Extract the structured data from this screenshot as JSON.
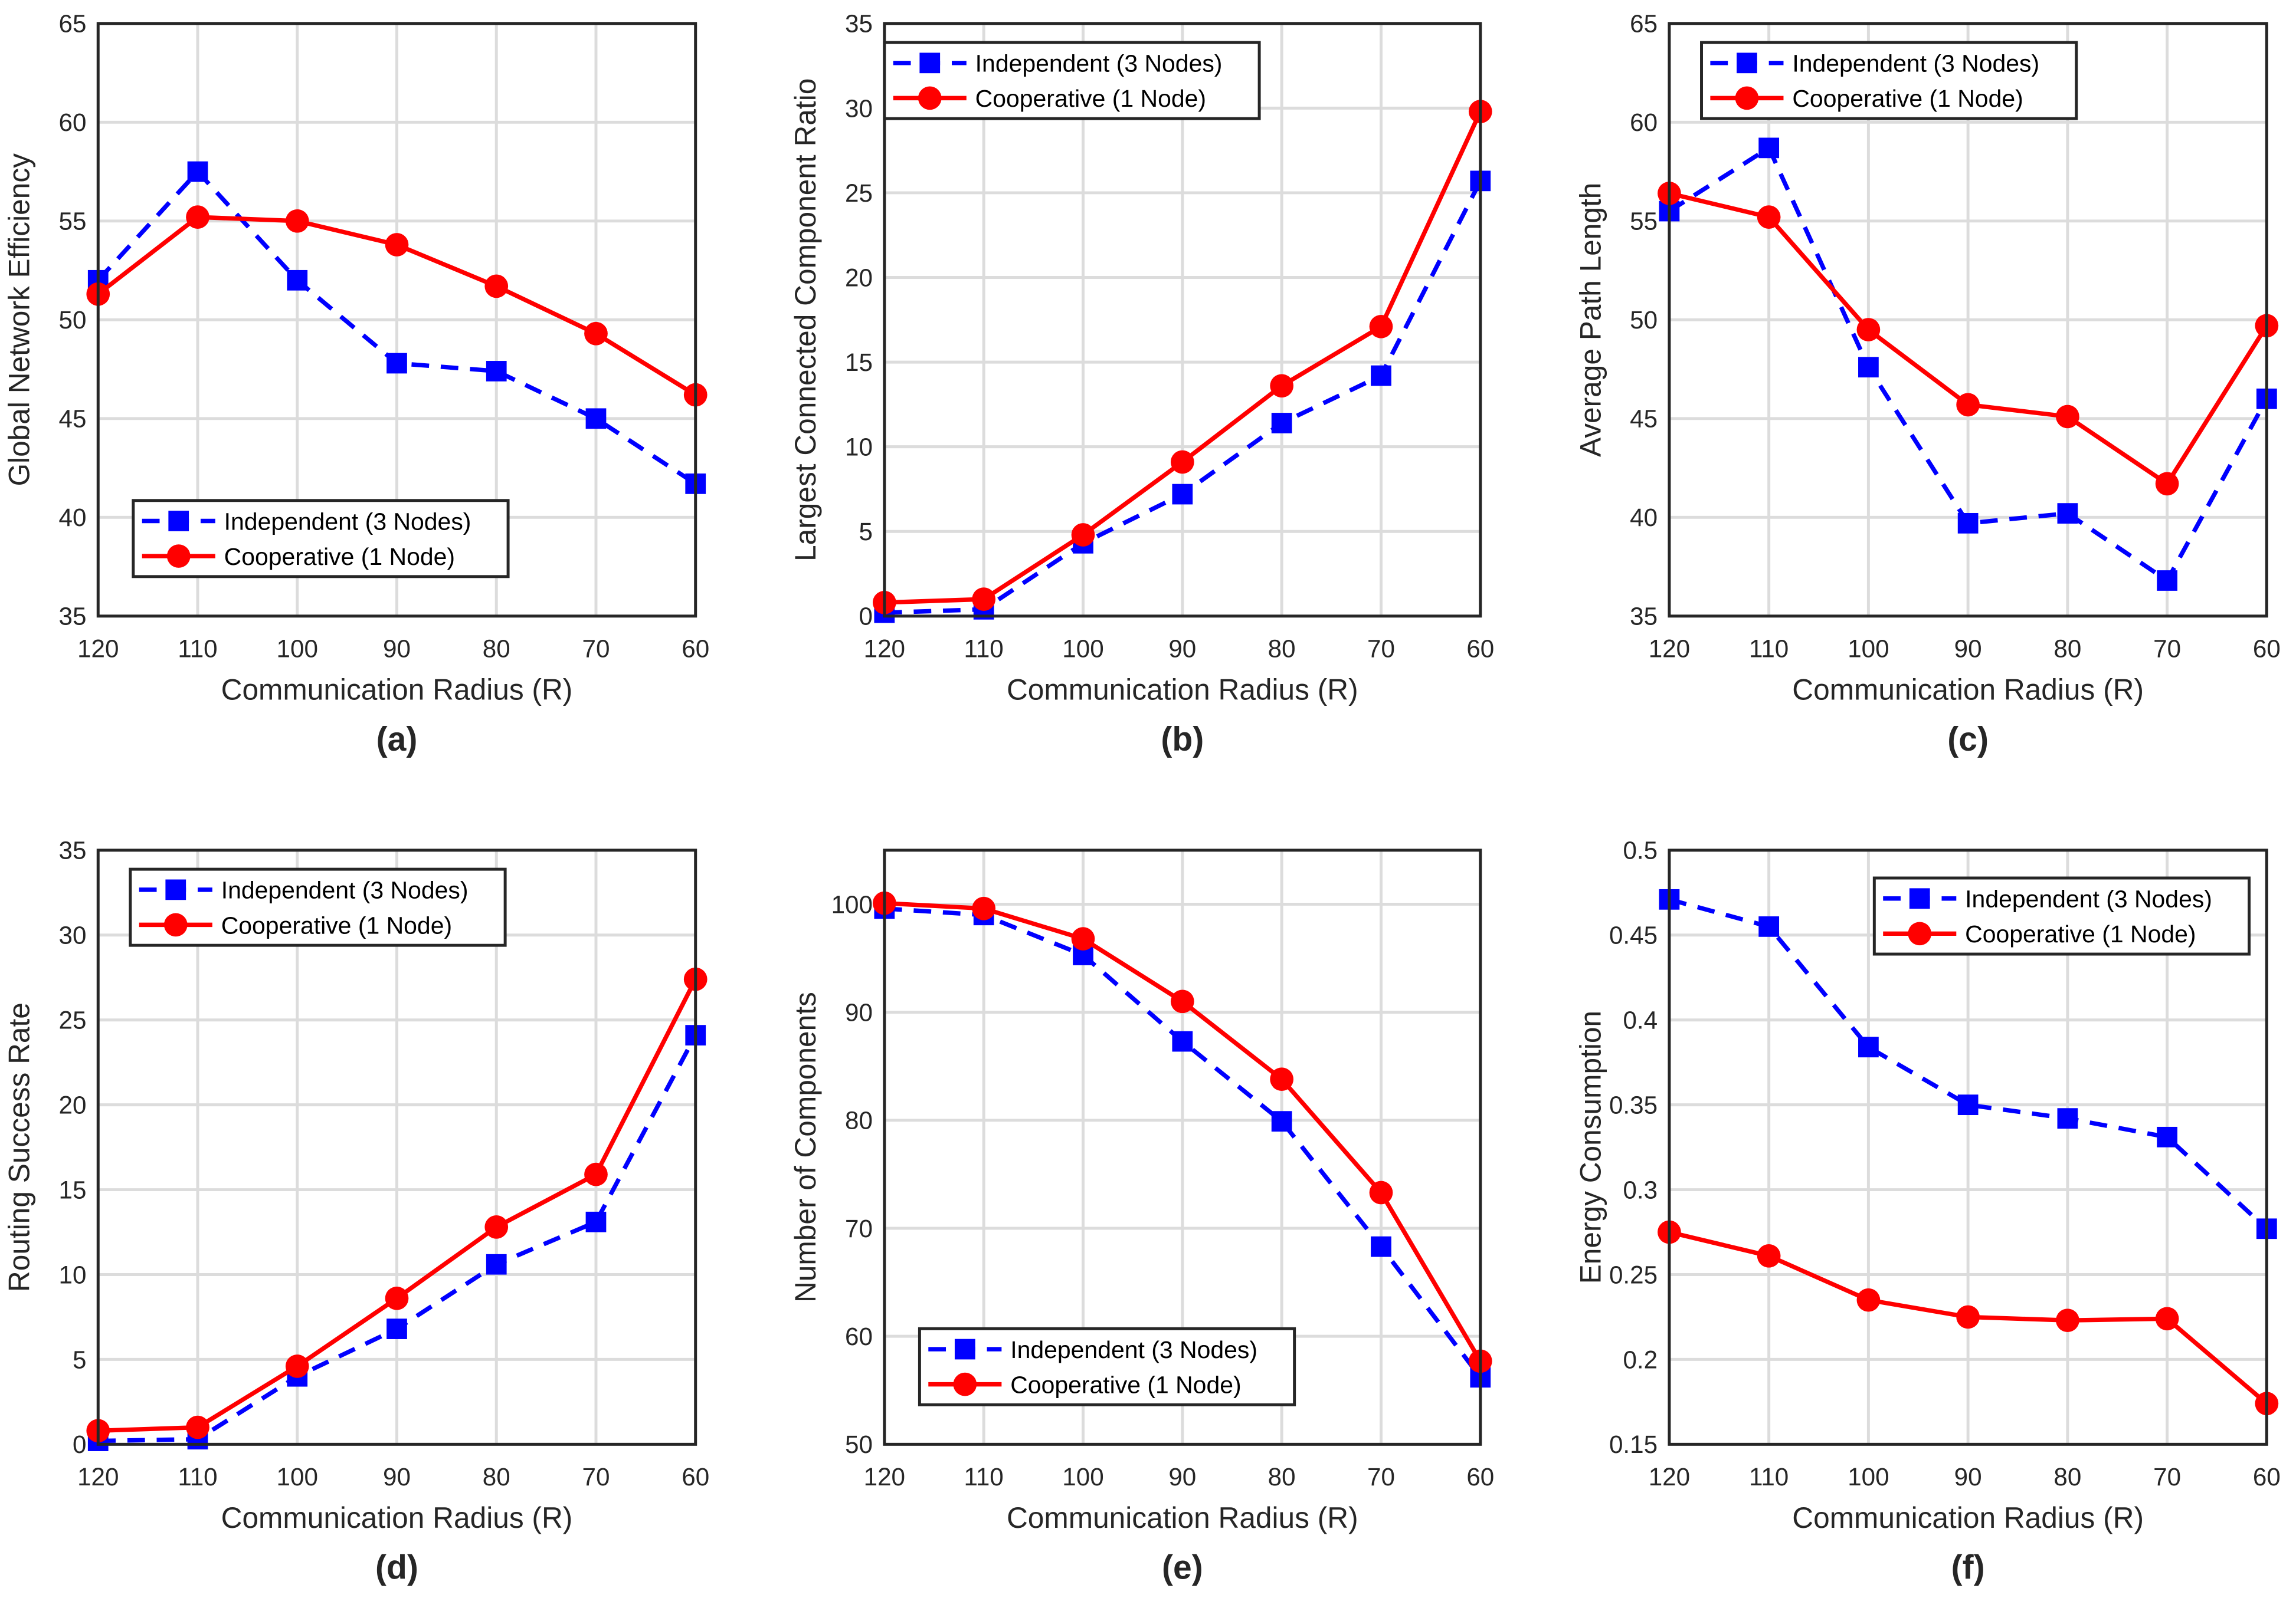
{
  "colors": {
    "independent": "#0000ff",
    "cooperative": "#ff0000",
    "grid": "#dcdcdc",
    "axis": "#262626"
  },
  "chart_data": [
    {
      "type": "line",
      "panel_label": "(a)",
      "xlabel": "Communication Radius (R)",
      "ylabel": "Global Network Efficiency",
      "x": [
        120,
        110,
        100,
        90,
        80,
        70,
        60
      ],
      "xlim": [
        120,
        60
      ],
      "ylim": [
        35,
        65
      ],
      "yticks": [
        35,
        40,
        45,
        50,
        55,
        60,
        65
      ],
      "grid": true,
      "legend_loc": "bottom-left",
      "series": [
        {
          "name": "Independent (3 Nodes)",
          "style": "dashed-square",
          "values": [
            52.0,
            57.5,
            52.0,
            47.8,
            47.4,
            45.0,
            41.7
          ]
        },
        {
          "name": "Cooperative (1 Node)",
          "style": "solid-circle",
          "values": [
            51.3,
            55.2,
            55.0,
            53.8,
            51.7,
            49.3,
            46.2
          ]
        }
      ]
    },
    {
      "type": "line",
      "panel_label": "(b)",
      "xlabel": "Communication Radius (R)",
      "ylabel": "Largest Connected Component Ratio",
      "x": [
        120,
        110,
        100,
        90,
        80,
        70,
        60
      ],
      "xlim": [
        120,
        60
      ],
      "ylim": [
        0,
        35
      ],
      "yticks": [
        0,
        5,
        10,
        15,
        20,
        25,
        30,
        35
      ],
      "grid": true,
      "legend_loc": "top-left",
      "series": [
        {
          "name": "Independent (3 Nodes)",
          "style": "dashed-square",
          "values": [
            0.2,
            0.4,
            4.3,
            7.2,
            11.4,
            14.2,
            25.7
          ]
        },
        {
          "name": "Cooperative (1 Node)",
          "style": "solid-circle",
          "values": [
            0.8,
            1.0,
            4.8,
            9.1,
            13.6,
            17.1,
            29.8
          ]
        }
      ]
    },
    {
      "type": "line",
      "panel_label": "(c)",
      "xlabel": "Communication Radius (R)",
      "ylabel": "Average Path Length",
      "x": [
        120,
        110,
        100,
        90,
        80,
        70,
        60
      ],
      "xlim": [
        120,
        60
      ],
      "ylim": [
        35,
        65
      ],
      "yticks": [
        35,
        40,
        45,
        50,
        55,
        60,
        65
      ],
      "grid": true,
      "legend_loc": "top-left",
      "series": [
        {
          "name": "Independent (3 Nodes)",
          "style": "dashed-square",
          "values": [
            55.5,
            58.7,
            47.6,
            39.7,
            40.2,
            36.8,
            46.0
          ]
        },
        {
          "name": "Cooperative (1 Node)",
          "style": "solid-circle",
          "values": [
            56.4,
            55.2,
            49.5,
            45.7,
            45.1,
            41.7,
            49.7
          ]
        }
      ]
    },
    {
      "type": "line",
      "panel_label": "(d)",
      "xlabel": "Communication Radius (R)",
      "ylabel": "Routing Success Rate",
      "x": [
        120,
        110,
        100,
        90,
        80,
        70,
        60
      ],
      "xlim": [
        120,
        60
      ],
      "ylim": [
        0,
        35
      ],
      "yticks": [
        0,
        5,
        10,
        15,
        20,
        25,
        30,
        35
      ],
      "grid": true,
      "legend_loc": "top-left",
      "series": [
        {
          "name": "Independent (3 Nodes)",
          "style": "dashed-square",
          "values": [
            0.2,
            0.3,
            4.0,
            6.8,
            10.6,
            13.1,
            24.1
          ]
        },
        {
          "name": "Cooperative (1 Node)",
          "style": "solid-circle",
          "values": [
            0.8,
            1.0,
            4.6,
            8.6,
            12.8,
            15.9,
            27.4
          ]
        }
      ]
    },
    {
      "type": "line",
      "panel_label": "(e)",
      "xlabel": "Communication Radius (R)",
      "ylabel": "Number of Components",
      "x": [
        120,
        110,
        100,
        90,
        80,
        70,
        60
      ],
      "xlim": [
        120,
        60
      ],
      "ylim": [
        50,
        105
      ],
      "yticks": [
        50,
        60,
        70,
        80,
        90,
        100
      ],
      "grid": true,
      "legend_loc": "bottom-left",
      "series": [
        {
          "name": "Independent (3 Nodes)",
          "style": "dashed-square",
          "values": [
            99.6,
            99.0,
            95.3,
            87.3,
            79.9,
            68.3,
            56.2
          ]
        },
        {
          "name": "Cooperative (1 Node)",
          "style": "solid-circle",
          "values": [
            100.1,
            99.6,
            96.8,
            91.0,
            83.8,
            73.3,
            57.7
          ]
        }
      ]
    },
    {
      "type": "line",
      "panel_label": "(f)",
      "xlabel": "Communication Radius (R)",
      "ylabel": "Energy Consumption",
      "x": [
        120,
        110,
        100,
        90,
        80,
        70,
        60
      ],
      "xlim": [
        120,
        60
      ],
      "ylim": [
        0.15,
        0.5
      ],
      "yticks": [
        0.15,
        0.2,
        0.25,
        0.3,
        0.35,
        0.4,
        0.45,
        0.5
      ],
      "grid": true,
      "legend_loc": "top-right",
      "series": [
        {
          "name": "Independent (3 Nodes)",
          "style": "dashed-square",
          "values": [
            0.471,
            0.455,
            0.384,
            0.35,
            0.342,
            0.331,
            0.277
          ]
        },
        {
          "name": "Cooperative (1 Node)",
          "style": "solid-circle",
          "values": [
            0.275,
            0.261,
            0.235,
            0.225,
            0.223,
            0.224,
            0.174
          ]
        }
      ]
    }
  ]
}
